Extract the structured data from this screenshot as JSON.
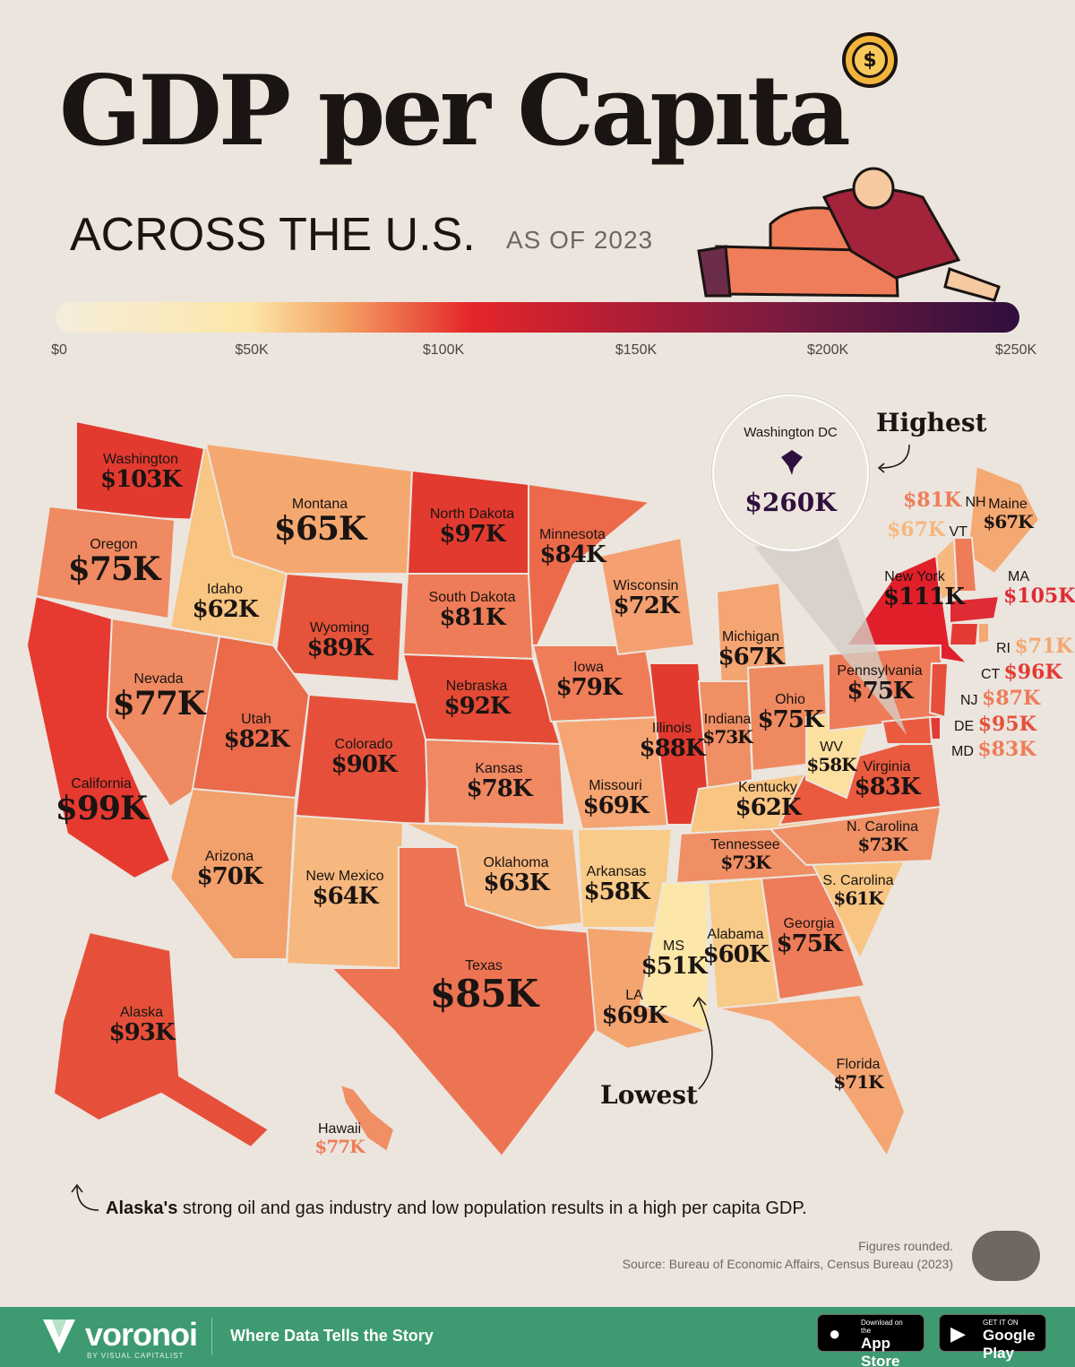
{
  "header": {
    "title_part1": "GDP per Cap",
    "title_part2": "ta",
    "subtitle": "ACROSS THE U.S.",
    "as_of": "AS OF 2023"
  },
  "legend": {
    "ticks": [
      "$0",
      "$50K",
      "$100K",
      "$150K",
      "$200K",
      "$250K"
    ],
    "colors": [
      "#f5eddd",
      "#fce7a8",
      "#f3a062",
      "#e5262a",
      "#b41e35",
      "#7b1b3f",
      "#2f0f3d"
    ]
  },
  "states": {
    "washington": {
      "name": "Washington",
      "value": "$103K"
    },
    "oregon": {
      "name": "Oregon",
      "value": "$75K"
    },
    "california": {
      "name": "California",
      "value": "$99K"
    },
    "idaho": {
      "name": "Idaho",
      "value": "$62K"
    },
    "nevada": {
      "name": "Nevada",
      "value": "$77K"
    },
    "montana": {
      "name": "Montana",
      "value": "$65K"
    },
    "wyoming": {
      "name": "Wyoming",
      "value": "$89K"
    },
    "utah": {
      "name": "Utah",
      "value": "$82K"
    },
    "arizona": {
      "name": "Arizona",
      "value": "$70K"
    },
    "colorado": {
      "name": "Colorado",
      "value": "$90K"
    },
    "new_mexico": {
      "name": "New Mexico",
      "value": "$64K"
    },
    "north_dakota": {
      "name": "North Dakota",
      "value": "$97K"
    },
    "south_dakota": {
      "name": "South Dakota",
      "value": "$81K"
    },
    "nebraska": {
      "name": "Nebraska",
      "value": "$92K"
    },
    "kansas": {
      "name": "Kansas",
      "value": "$78K"
    },
    "oklahoma": {
      "name": "Oklahoma",
      "value": "$63K"
    },
    "texas": {
      "name": "Texas",
      "value": "$85K"
    },
    "minnesota": {
      "name": "Minnesota",
      "value": "$84K"
    },
    "iowa": {
      "name": "Iowa",
      "value": "$79K"
    },
    "missouri": {
      "name": "Missouri",
      "value": "$69K"
    },
    "arkansas": {
      "name": "Arkansas",
      "value": "$58K"
    },
    "louisiana": {
      "name": "LA",
      "value": "$69K"
    },
    "wisconsin": {
      "name": "Wisconsin",
      "value": "$72K"
    },
    "illinois": {
      "name": "Illinois",
      "value": "$88K"
    },
    "michigan": {
      "name": "Michigan",
      "value": "$67K"
    },
    "indiana": {
      "name": "Indiana",
      "value": "$73K"
    },
    "ohio": {
      "name": "Ohio",
      "value": "$75K"
    },
    "kentucky": {
      "name": "Kentucky",
      "value": "$62K"
    },
    "tennessee": {
      "name": "Tennessee",
      "value": "$73K"
    },
    "mississippi": {
      "name": "MS",
      "value": "$51K"
    },
    "alabama": {
      "name": "Alabama",
      "value": "$60K"
    },
    "georgia": {
      "name": "Georgia",
      "value": "$75K"
    },
    "florida": {
      "name": "Florida",
      "value": "$71K"
    },
    "south_carolina": {
      "name": "S. Carolina",
      "value": "$61K"
    },
    "north_carolina": {
      "name": "N. Carolina",
      "value": "$73K"
    },
    "virginia": {
      "name": "Virginia",
      "value": "$83K"
    },
    "west_virginia": {
      "name": "WV",
      "value": "$58K"
    },
    "pennsylvania": {
      "name": "Pennsylvania",
      "value": "$75K"
    },
    "new_york": {
      "name": "New York",
      "value": "$111K"
    },
    "maine": {
      "name": "Maine",
      "value": "$67K"
    },
    "alaska": {
      "name": "Alaska",
      "value": "$93K"
    },
    "hawaii": {
      "name": "Hawaii",
      "value": "$77K"
    },
    "new_hampshire": {
      "name": "NH",
      "value": "$81K"
    },
    "vermont": {
      "name": "VT",
      "value": "$67K"
    },
    "massachusetts": {
      "name": "MA",
      "value": "$105K"
    },
    "rhode_island": {
      "name": "RI",
      "value": "$71K"
    },
    "connecticut": {
      "name": "CT",
      "value": "$96K"
    },
    "new_jersey": {
      "name": "NJ",
      "value": "$87K"
    },
    "delaware": {
      "name": "DE",
      "value": "$95K"
    },
    "maryland": {
      "name": "MD",
      "value": "$83K"
    },
    "dc": {
      "name": "Washington DC",
      "value": "$260K"
    }
  },
  "annotations": {
    "highest": "Highest",
    "lowest": "Lowest",
    "note_bold": "Alaska's",
    "note_rest": " strong oil and gas industry and low population results in a high per capita GDP."
  },
  "source": {
    "line1": "Figures rounded.",
    "line2": "Source: Bureau of Economic Affairs, Census Bureau (2023)"
  },
  "footer": {
    "brand": "voronoi",
    "brand_sub": "BY VISUAL CAPITALIST",
    "tagline": "Where Data Tells the Story",
    "appstore_small": "Download on the",
    "appstore_big": "App Store",
    "googleplay_small": "GET IT ON",
    "googleplay_big": "Google Play"
  }
}
